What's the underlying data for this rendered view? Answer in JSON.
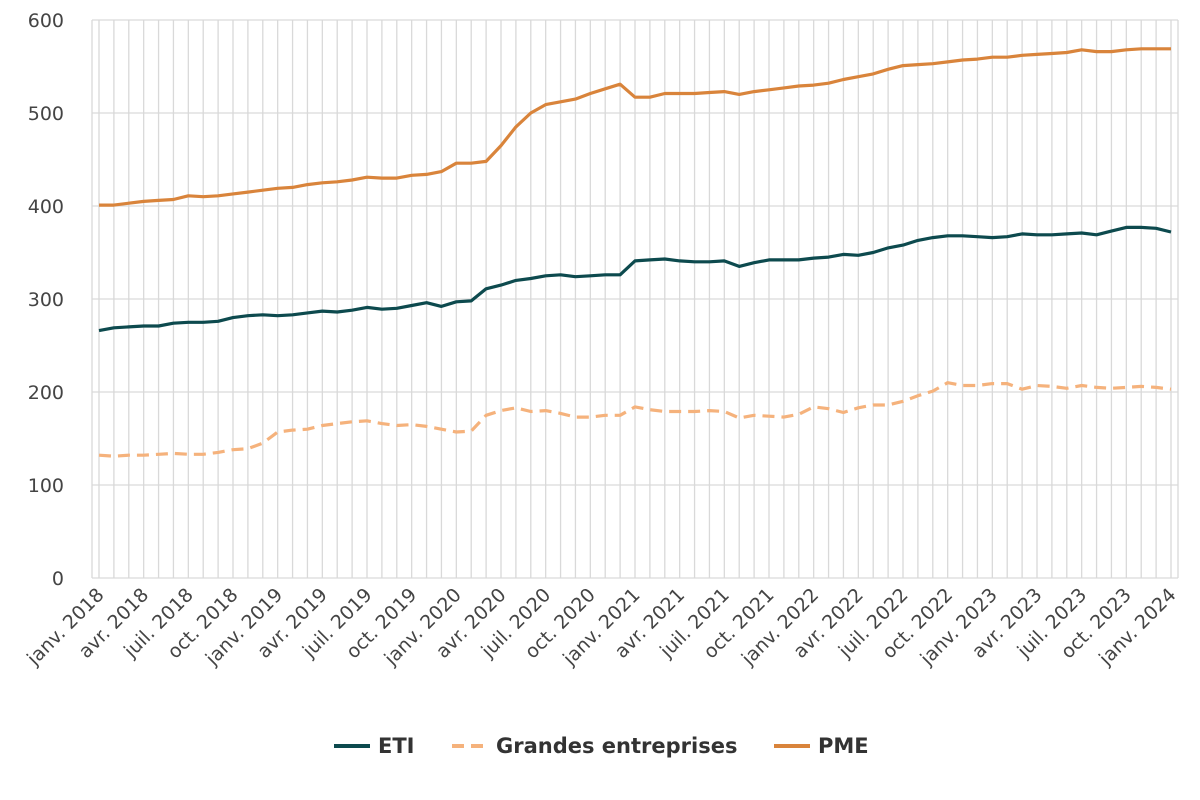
{
  "chart_data": {
    "type": "line",
    "title": "",
    "xlabel": "",
    "ylabel": "",
    "ylim": [
      0,
      600
    ],
    "yticks": [
      0,
      100,
      200,
      300,
      400,
      500,
      600
    ],
    "ytick_labels": [
      "0",
      "100",
      "200",
      "300",
      "400",
      "500",
      "600"
    ],
    "grid": true,
    "legend_position": "bottom",
    "x": [
      "2018-01",
      "2018-02",
      "2018-03",
      "2018-04",
      "2018-05",
      "2018-06",
      "2018-07",
      "2018-08",
      "2018-09",
      "2018-10",
      "2018-11",
      "2018-12",
      "2019-01",
      "2019-02",
      "2019-03",
      "2019-04",
      "2019-05",
      "2019-06",
      "2019-07",
      "2019-08",
      "2019-09",
      "2019-10",
      "2019-11",
      "2019-12",
      "2020-01",
      "2020-02",
      "2020-03",
      "2020-04",
      "2020-05",
      "2020-06",
      "2020-07",
      "2020-08",
      "2020-09",
      "2020-10",
      "2020-11",
      "2020-12",
      "2021-01",
      "2021-02",
      "2021-03",
      "2021-04",
      "2021-05",
      "2021-06",
      "2021-07",
      "2021-08",
      "2021-09",
      "2021-10",
      "2021-11",
      "2021-12",
      "2022-01",
      "2022-02",
      "2022-03",
      "2022-04",
      "2022-05",
      "2022-06",
      "2022-07",
      "2022-08",
      "2022-09",
      "2022-10",
      "2022-11",
      "2022-12",
      "2023-01",
      "2023-02",
      "2023-03",
      "2023-04",
      "2023-05",
      "2023-06",
      "2023-07",
      "2023-08",
      "2023-09",
      "2023-10",
      "2023-11",
      "2023-12",
      "2024-01"
    ],
    "xtick_labels": [
      {
        "index": 0,
        "label": "janv. 2018"
      },
      {
        "index": 3,
        "label": "avr. 2018"
      },
      {
        "index": 6,
        "label": "juil. 2018"
      },
      {
        "index": 9,
        "label": "oct. 2018"
      },
      {
        "index": 12,
        "label": "janv. 2019"
      },
      {
        "index": 15,
        "label": "avr. 2019"
      },
      {
        "index": 18,
        "label": "juil. 2019"
      },
      {
        "index": 21,
        "label": "oct. 2019"
      },
      {
        "index": 24,
        "label": "janv. 2020"
      },
      {
        "index": 27,
        "label": "avr. 2020"
      },
      {
        "index": 30,
        "label": "juil. 2020"
      },
      {
        "index": 33,
        "label": "oct. 2020"
      },
      {
        "index": 36,
        "label": "janv. 2021"
      },
      {
        "index": 39,
        "label": "avr. 2021"
      },
      {
        "index": 42,
        "label": "juil. 2021"
      },
      {
        "index": 45,
        "label": "oct. 2021"
      },
      {
        "index": 48,
        "label": "janv. 2022"
      },
      {
        "index": 51,
        "label": "avr. 2022"
      },
      {
        "index": 54,
        "label": "juil. 2022"
      },
      {
        "index": 57,
        "label": "oct. 2022"
      },
      {
        "index": 60,
        "label": "janv. 2023"
      },
      {
        "index": 63,
        "label": "avr. 2023"
      },
      {
        "index": 66,
        "label": "juil. 2023"
      },
      {
        "index": 69,
        "label": "oct. 2023"
      },
      {
        "index": 72,
        "label": "janv. 2024"
      }
    ],
    "series": [
      {
        "name": "ETI",
        "color": "#0d4a4e",
        "dashed": false,
        "values": [
          266,
          269,
          270,
          271,
          271,
          274,
          275,
          275,
          276,
          280,
          282,
          283,
          282,
          283,
          285,
          287,
          286,
          288,
          291,
          289,
          290,
          293,
          296,
          292,
          297,
          298,
          311,
          315,
          320,
          322,
          325,
          326,
          324,
          325,
          326,
          326,
          341,
          342,
          343,
          341,
          340,
          340,
          341,
          335,
          339,
          342,
          342,
          342,
          344,
          345,
          348,
          347,
          350,
          355,
          358,
          363,
          366,
          368,
          368,
          367,
          366,
          367,
          370,
          369,
          369,
          370,
          371,
          369,
          373,
          377,
          377,
          376,
          372
        ]
      },
      {
        "name": "Grandes entreprises",
        "color": "#f5b27c",
        "dashed": true,
        "values": [
          132,
          131,
          132,
          132,
          133,
          134,
          133,
          133,
          135,
          138,
          139,
          145,
          157,
          159,
          160,
          164,
          166,
          168,
          169,
          166,
          164,
          165,
          163,
          160,
          157,
          158,
          175,
          180,
          183,
          179,
          180,
          177,
          173,
          173,
          175,
          175,
          184,
          181,
          179,
          179,
          179,
          180,
          179,
          172,
          175,
          174,
          173,
          176,
          184,
          182,
          178,
          183,
          186,
          186,
          190,
          196,
          201,
          210,
          207,
          207,
          209,
          209,
          203,
          207,
          206,
          204,
          207,
          205,
          204,
          205,
          206,
          205,
          203
        ]
      },
      {
        "name": "PME",
        "color": "#d9843b",
        "dashed": false,
        "values": [
          401,
          401,
          403,
          405,
          406,
          407,
          411,
          410,
          411,
          413,
          415,
          417,
          419,
          420,
          423,
          425,
          426,
          428,
          431,
          430,
          430,
          433,
          434,
          437,
          446,
          446,
          448,
          465,
          485,
          500,
          509,
          512,
          515,
          521,
          526,
          531,
          517,
          517,
          521,
          521,
          521,
          522,
          523,
          520,
          523,
          525,
          527,
          529,
          530,
          532,
          536,
          539,
          542,
          547,
          551,
          552,
          553,
          555,
          557,
          558,
          560,
          560,
          562,
          563,
          564,
          565,
          568,
          566,
          566,
          568,
          569,
          569,
          569
        ]
      }
    ]
  }
}
